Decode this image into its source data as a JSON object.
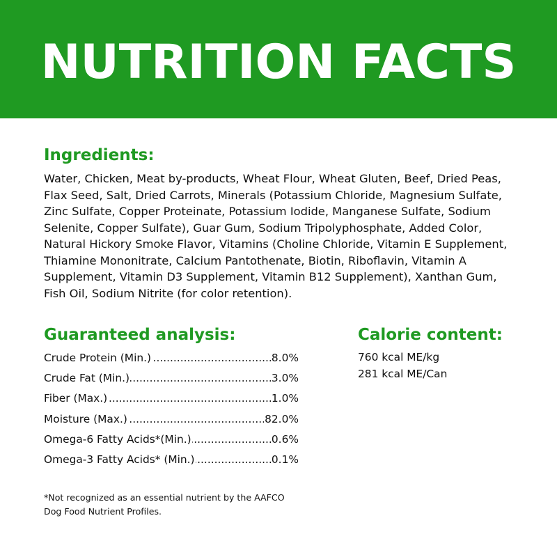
{
  "colors": {
    "brand_green": "#1f9a22",
    "text": "#111111",
    "background": "#ffffff"
  },
  "header": {
    "title": "NUTRITION FACTS"
  },
  "ingredients": {
    "heading": "Ingredients:",
    "text": "Water, Chicken, Meat by-products, Wheat Flour, Wheat Gluten, Beef, Dried Peas, Flax Seed, Salt, Dried Carrots, Minerals (Potassium Chloride, Magnesium Sulfate, Zinc Sulfate, Copper Proteinate, Potassium Iodide, Manganese Sulfate, Sodium Selenite, Copper Sulfate), Guar Gum, Sodium Tripolyphosphate, Added Color, Natural Hickory Smoke Flavor, Vitamins (Choline Chloride, Vitamin E Supplement, Thiamine Mononitrate, Calcium Pantothenate, Biotin, Riboflavin, Vitamin A Supplement, Vitamin D3 Supplement, Vitamin B12 Supplement), Xanthan Gum, Fish Oil, Sodium Nitrite (for color retention)."
  },
  "analysis": {
    "heading": "Guaranteed analysis:",
    "rows": [
      {
        "label": "Crude Protein (Min.)",
        "value": "8.0%"
      },
      {
        "label": "Crude Fat (Min.)",
        "value": "3.0%"
      },
      {
        "label": "Fiber (Max.) ",
        "value": "1.0%"
      },
      {
        "label": "Moisture (Max.)",
        "value": " 82.0%"
      },
      {
        "label": "Omega-6 Fatty Acids*(Min.) ",
        "value": "0.6%"
      },
      {
        "label": "Omega-3 Fatty Acids* (Min.) ",
        "value": "0.1%"
      }
    ]
  },
  "calorie": {
    "heading": "Calorie content:",
    "lines": [
      "760 kcal ME/kg",
      "281 kcal ME/Can"
    ]
  },
  "footnote": {
    "line1": "*Not recognized as an essential nutrient by the AAFCO",
    "line2": "Dog Food Nutrient Profiles."
  }
}
